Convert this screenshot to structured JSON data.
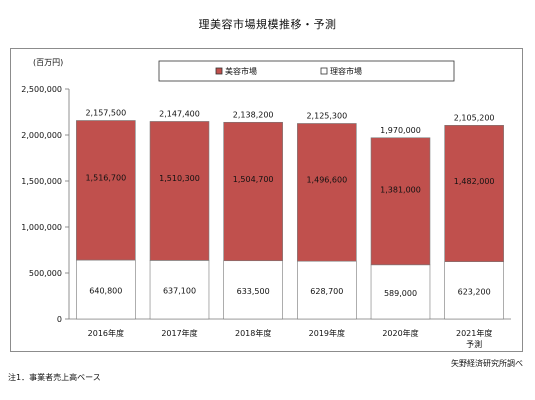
{
  "page": {
    "title": "理美容市場規模推移・予測",
    "footnote": "注1．事業者売上高ベース",
    "source": "矢野経済研究所調べ"
  },
  "chart_data": {
    "type": "bar",
    "stacked": true,
    "title": "理美容市場規模推移・予測",
    "unit_label": "(百万円)",
    "categories": [
      "2016年度",
      "2017年度",
      "2018年度",
      "2019年度",
      "2020年度",
      "2021年度"
    ],
    "category_sublabels": [
      "",
      "",
      "",
      "",
      "",
      "予測"
    ],
    "series": [
      {
        "name": "理容市場",
        "values": [
          640800,
          637100,
          633500,
          628700,
          589000,
          623200
        ],
        "color": "#ffffff"
      },
      {
        "name": "美容市場",
        "values": [
          1516700,
          1510300,
          1504700,
          1496600,
          1381000,
          1482000
        ],
        "color": "#c0504d"
      }
    ],
    "totals": [
      2157500,
      2147400,
      2138200,
      2125300,
      1970000,
      2105200
    ],
    "value_labels": {
      "理容市場": [
        "640,800",
        "637,100",
        "633,500",
        "628,700",
        "589,000",
        "623,200"
      ],
      "美容市場": [
        "1,516,700",
        "1,510,300",
        "1,504,700",
        "1,496,600",
        "1,381,000",
        "1,482,000"
      ],
      "total": [
        "2,157,500",
        "2,147,400",
        "2,138,200",
        "2,125,300",
        "1,970,000",
        "2,105,200"
      ]
    },
    "yticks": [
      "0",
      "500,000",
      "1,000,000",
      "1,500,000",
      "2,000,000",
      "2,500,000"
    ],
    "ylim": [
      0,
      2500000
    ],
    "legend": {
      "position": "top",
      "items": [
        "美容市場",
        "理容市場"
      ]
    },
    "grid": false
  }
}
